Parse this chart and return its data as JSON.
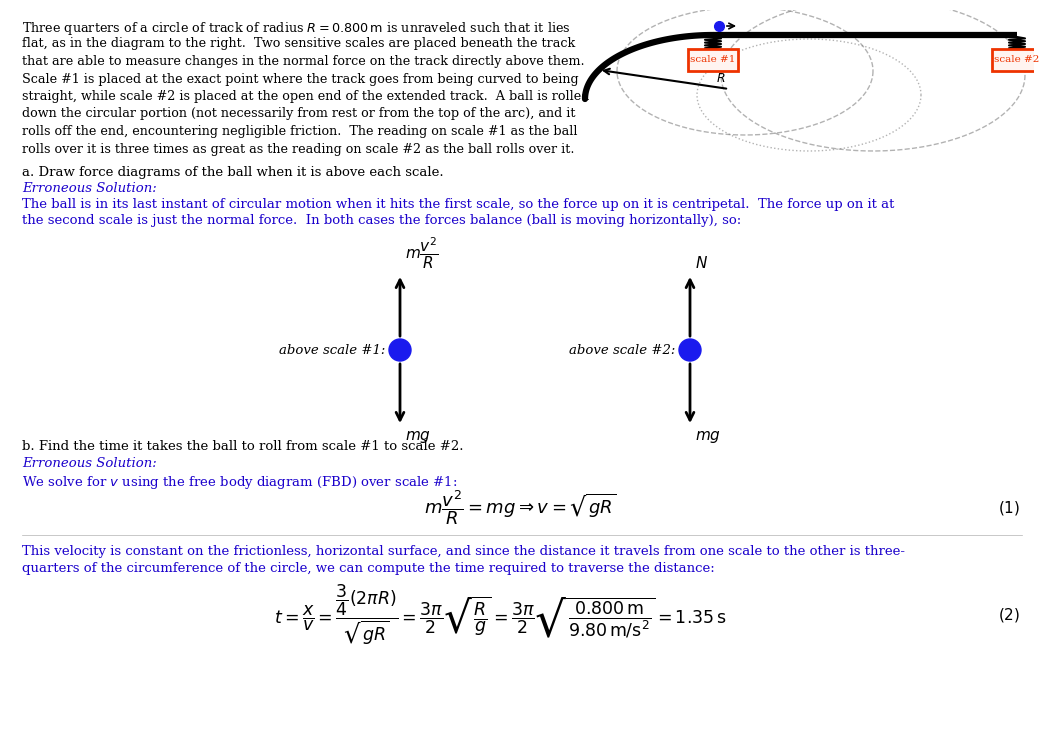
{
  "bg_color": "#ffffff",
  "text_color_black": "#000000",
  "text_color_blue": "#1a00cc",
  "ball_color": "#1a1aee",
  "track_color": "#111111",
  "scale_box_color": "#ee3300",
  "scale_fill_color": "#fff4f0",
  "scale1_label": "scale #1",
  "scale2_label": "scale #2",
  "para_lines": [
    "Three quarters of a circle of track of radius $R = 0.800\\,\\mathrm{m}$ is unraveled such that it lies",
    "flat, as in the diagram to the right.  Two sensitive scales are placed beneath the track",
    "that are able to measure changes in the normal force on the track directly above them.",
    "Scale #1 is placed at the exact point where the track goes from being curved to being",
    "straight, while scale #2 is placed at the open end of the extended track.  A ball is rolled",
    "down the circular portion (not necessarily from rest or from the top of the arc), and it",
    "rolls off the end, encountering negligible friction.  The reading on scale #1 as the ball",
    "rolls over it is three times as great as the reading on scale #2 as the ball rolls over it."
  ],
  "part_a": "a. Draw force diagrams of the ball when it is above each scale.",
  "erroneous": "Erroneous Solution:",
  "erroneous_a1": "The ball is in its last instant of circular motion when it hits the first scale, so the force up on it is centripetal.  The force up on it at",
  "erroneous_a2": "the second scale is just the normal force.  In both cases the forces balance (ball is moving horizontally), so:",
  "above_scale1": "above scale #1:",
  "above_scale2": "above scale #2:",
  "part_b": "b. Find the time it takes the ball to roll from scale #1 to scale #2.",
  "erroneous_b": "We solve for $v$ using the free body diagram (FBD) over scale #1:",
  "velocity_text1": "This velocity is constant on the frictionless, horizontal surface, and since the distance it travels from one scale to the other is three-",
  "velocity_text2": "quarters of the circumference of the circle, we can compute the time required to traverse the distance:"
}
